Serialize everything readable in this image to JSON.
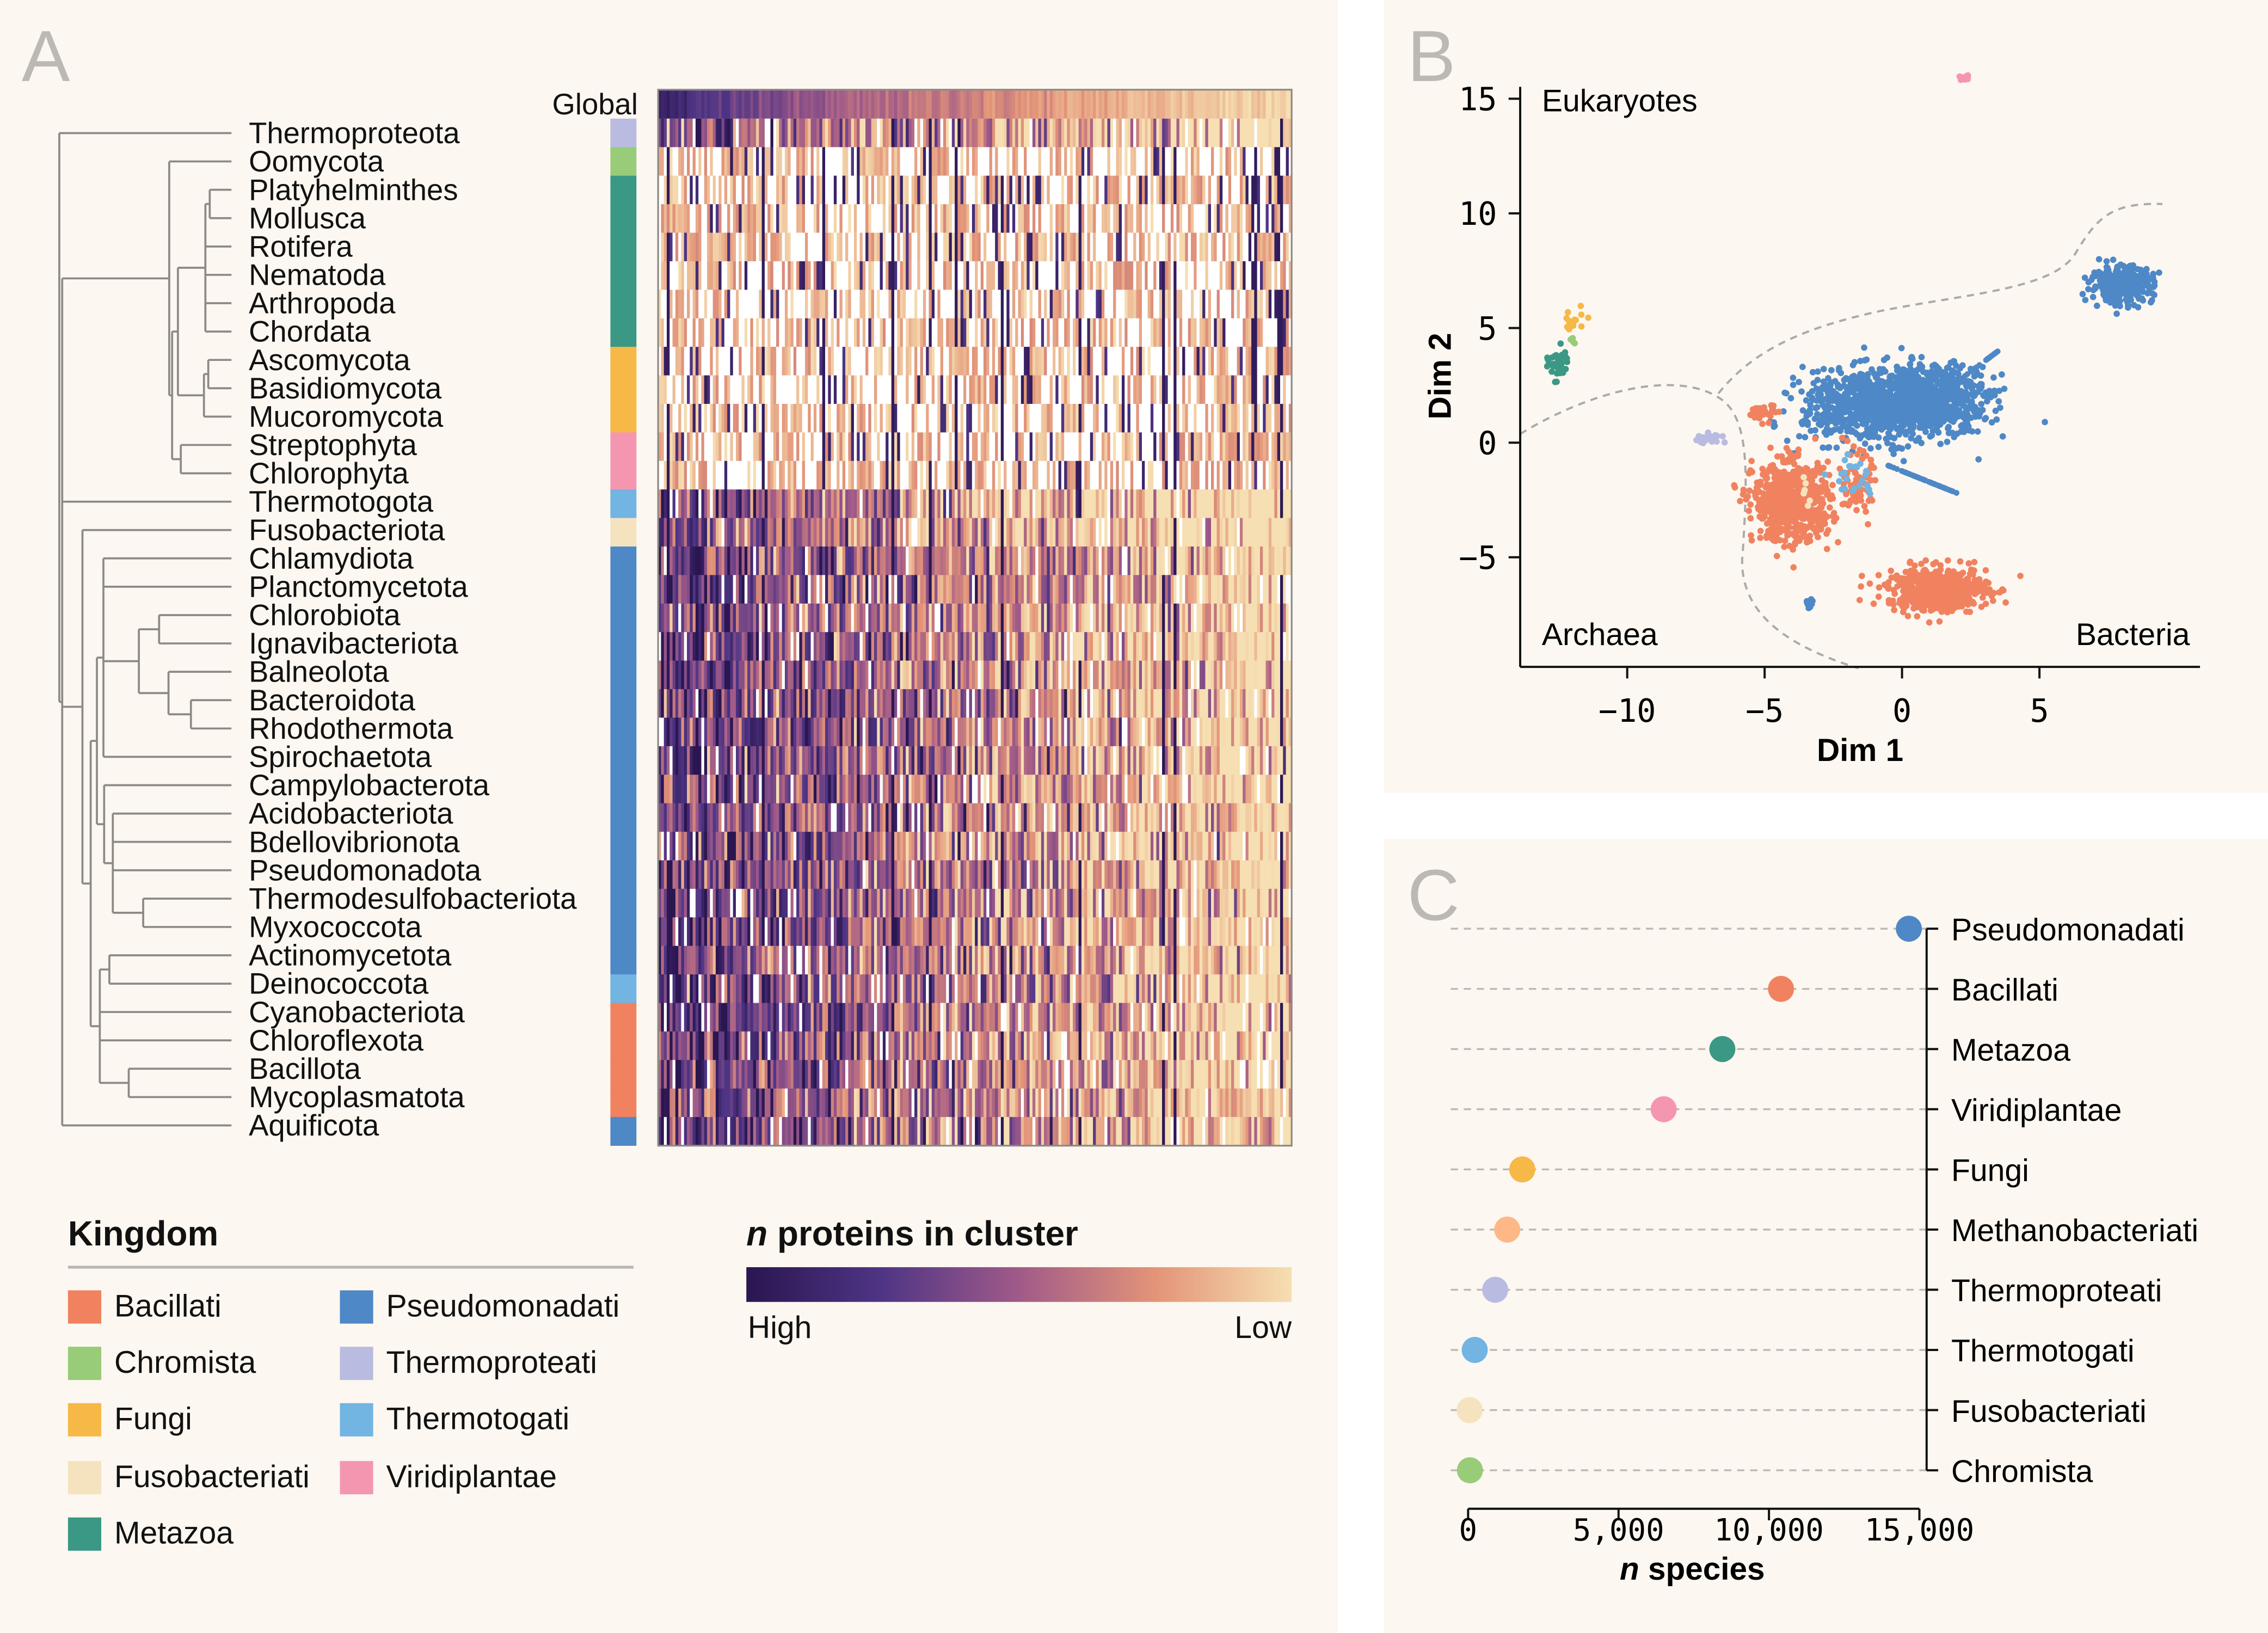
{
  "panel_letters": {
    "a": "A",
    "b": "B",
    "c": "C"
  },
  "kingdoms": {
    "Bacillati": "#f08260",
    "Chromista": "#98cc78",
    "Fungi": "#f6b846",
    "Fusobacteriati": "#f5e3bf",
    "Metazoa": "#3a9884",
    "Pseudomonadati": "#4e88c6",
    "Thermoproteati": "#b9bce0",
    "Thermotogati": "#72b4e2",
    "Viridiplantae": "#f596b0",
    "Methanobacteriati": "#fdb886"
  },
  "legend": {
    "title": "Kingdom",
    "items": [
      {
        "label": "Bacillati",
        "color": "#f08260"
      },
      {
        "label": "Chromista",
        "color": "#98cc78"
      },
      {
        "label": "Fungi",
        "color": "#f6b846"
      },
      {
        "label": "Fusobacteriati",
        "color": "#f5e3bf"
      },
      {
        "label": "Metazoa",
        "color": "#3a9884"
      },
      {
        "label": "Pseudomonadati",
        "color": "#4e88c6"
      },
      {
        "label": "Thermoproteati",
        "color": "#b9bce0"
      },
      {
        "label": "Thermotogati",
        "color": "#72b4e2"
      },
      {
        "label": "Viridiplantae",
        "color": "#f596b0"
      }
    ]
  },
  "colorbar": {
    "title_italic": "n",
    "title_rest": " proteins in cluster",
    "high_label": "High",
    "low_label": "Low",
    "colors": [
      "#2a1650",
      "#4f3585",
      "#a05a88",
      "#e39478",
      "#f6dfb2"
    ]
  },
  "chart_data": [
    {
      "type": "heatmap",
      "panel": "A",
      "global_row_label": "Global",
      "rows": [
        {
          "phylum": "Thermoproteota",
          "kingdom": "Thermoproteati"
        },
        {
          "phylum": "Oomycota",
          "kingdom": "Chromista"
        },
        {
          "phylum": "Platyhelminthes",
          "kingdom": "Metazoa"
        },
        {
          "phylum": "Mollusca",
          "kingdom": "Metazoa"
        },
        {
          "phylum": "Rotifera",
          "kingdom": "Metazoa"
        },
        {
          "phylum": "Nematoda",
          "kingdom": "Metazoa"
        },
        {
          "phylum": "Arthropoda",
          "kingdom": "Metazoa"
        },
        {
          "phylum": "Chordata",
          "kingdom": "Metazoa"
        },
        {
          "phylum": "Ascomycota",
          "kingdom": "Fungi"
        },
        {
          "phylum": "Basidiomycota",
          "kingdom": "Fungi"
        },
        {
          "phylum": "Mucoromycota",
          "kingdom": "Fungi"
        },
        {
          "phylum": "Streptophyta",
          "kingdom": "Viridiplantae"
        },
        {
          "phylum": "Chlorophyta",
          "kingdom": "Viridiplantae"
        },
        {
          "phylum": "Thermotogota",
          "kingdom": "Thermotogati"
        },
        {
          "phylum": "Fusobacteriota",
          "kingdom": "Fusobacteriati"
        },
        {
          "phylum": "Chlamydiota",
          "kingdom": "Pseudomonadati"
        },
        {
          "phylum": "Planctomycetota",
          "kingdom": "Pseudomonadati"
        },
        {
          "phylum": "Chlorobiota",
          "kingdom": "Pseudomonadati"
        },
        {
          "phylum": "Ignavibacteriota",
          "kingdom": "Pseudomonadati"
        },
        {
          "phylum": "Balneolota",
          "kingdom": "Pseudomonadati"
        },
        {
          "phylum": "Bacteroidota",
          "kingdom": "Pseudomonadati"
        },
        {
          "phylum": "Rhodothermota",
          "kingdom": "Pseudomonadati"
        },
        {
          "phylum": "Spirochaetota",
          "kingdom": "Pseudomonadati"
        },
        {
          "phylum": "Campylobacterota",
          "kingdom": "Pseudomonadati"
        },
        {
          "phylum": "Acidobacteriota",
          "kingdom": "Pseudomonadati"
        },
        {
          "phylum": "Bdellovibrionota",
          "kingdom": "Pseudomonadati"
        },
        {
          "phylum": "Pseudomonadota",
          "kingdom": "Pseudomonadati"
        },
        {
          "phylum": "Thermodesulfobacteriota",
          "kingdom": "Pseudomonadati"
        },
        {
          "phylum": "Myxococcota",
          "kingdom": "Pseudomonadati"
        },
        {
          "phylum": "Actinomycetota",
          "kingdom": "Pseudomonadati"
        },
        {
          "phylum": "Deinococcota",
          "kingdom": "Thermotogati"
        },
        {
          "phylum": "Cyanobacteriota",
          "kingdom": "Bacillati"
        },
        {
          "phylum": "Chloroflexota",
          "kingdom": "Bacillati"
        },
        {
          "phylum": "Bacillota",
          "kingdom": "Bacillati"
        },
        {
          "phylum": "Mycoplasmatota",
          "kingdom": "Bacillati"
        },
        {
          "phylum": "Aquificota",
          "kingdom": "Pseudomonadati"
        }
      ]
    },
    {
      "type": "scatter",
      "panel": "B",
      "xlabel": "Dim 1",
      "ylabel": "Dim 2",
      "xlim": [
        -13.9,
        10.9
      ],
      "ylim": [
        -9.8,
        16
      ],
      "xticks": [
        -10,
        -5,
        0,
        5
      ],
      "yticks": [
        15,
        10,
        5,
        0,
        -5
      ],
      "xtick_labels": [
        "−10",
        "−5",
        "0",
        "5"
      ],
      "ytick_labels": [
        "15",
        "10",
        "5",
        "0",
        "−5"
      ],
      "annotations": {
        "top_left": "Eukaryotes",
        "bottom_left": "Archaea",
        "bottom_right": "Bacteria"
      },
      "grid": false
    },
    {
      "type": "scatter",
      "subtype": "dot-plot",
      "panel": "C",
      "xlabel_italic": "n",
      "xlabel_rest": " species",
      "xlim": [
        0,
        15000
      ],
      "xticks": [
        0,
        5000,
        10000,
        15000
      ],
      "xtick_labels": [
        "0",
        "5,000",
        "10,000",
        "15,000"
      ],
      "categories": [
        "Pseudomonadati",
        "Bacillati",
        "Metazoa",
        "Viridiplantae",
        "Fungi",
        "Methanobacteriati",
        "Thermoproteati",
        "Thermotogati",
        "Fusobacteriati",
        "Chromista"
      ],
      "values": [
        14650,
        10400,
        8450,
        6500,
        1800,
        1300,
        900,
        220,
        50,
        60
      ],
      "grid": false
    }
  ]
}
